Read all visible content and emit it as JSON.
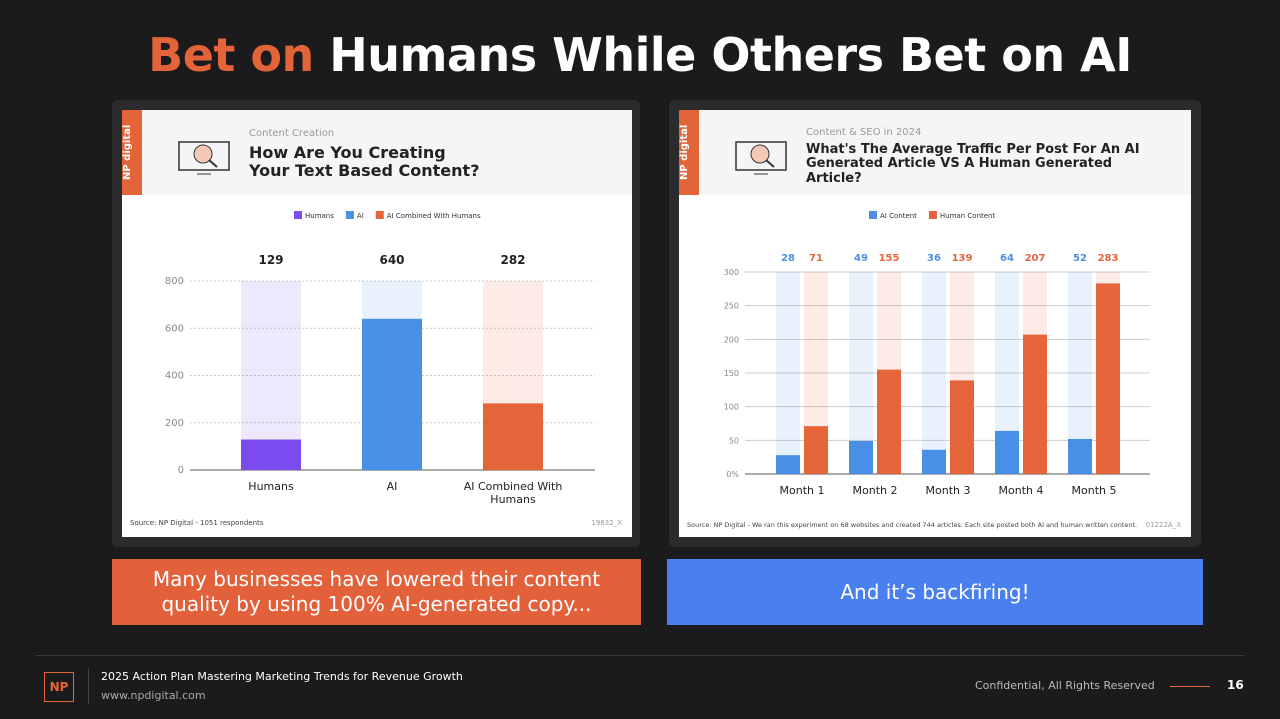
{
  "header": {
    "title_accent": "Bet on",
    "title_rest": "Humans While Others Bet on AI"
  },
  "chart_data": [
    {
      "type": "bar",
      "brand": "NP digital",
      "subtitle": "Content Creation",
      "title": "How Are You Creating Your Text Based Content?",
      "categories": [
        "Humans",
        "AI",
        "AI Combined With Humans"
      ],
      "values": [
        129,
        640,
        282
      ],
      "colors": [
        "#7a4cf0",
        "#4a8fe6",
        "#e5643a"
      ],
      "ylim": [
        0,
        800
      ],
      "yticks": [
        0,
        200,
        400,
        600,
        800
      ],
      "grid": true,
      "source": "Source: NP Digital - 1051 respondents",
      "code": "19632_X"
    },
    {
      "type": "bar",
      "brand": "NP digital",
      "subtitle": "Content & SEO in 2024",
      "title": "What's The Average Traffic Per Post For An AI Generated Article VS A Human Generated Article?",
      "categories": [
        "Month 1",
        "Month 2",
        "Month 3",
        "Month 4",
        "Month 5"
      ],
      "series": [
        {
          "name": "AI Content",
          "color": "#4a8fe6",
          "values": [
            28,
            49,
            36,
            64,
            52
          ]
        },
        {
          "name": "Human Content",
          "color": "#e5643a",
          "values": [
            71,
            155,
            139,
            207,
            283
          ]
        }
      ],
      "ylim": [
        0,
        300
      ],
      "yticks": [
        {
          "value": 0,
          "label": "0%"
        },
        50,
        100,
        150,
        200,
        250,
        300
      ],
      "grid": true,
      "source": "Source: NP Digital - We ran this experiment on 68 websites and created 744 articles. Each site posted both AI and human written content.",
      "code": "01222A_X"
    }
  ],
  "captions": [
    "Many businesses have lowered their content quality by using 100% AI-generated copy...",
    "And it’s backfiring!"
  ],
  "footer": {
    "logo": "NP",
    "title": "2025 Action Plan Mastering Marketing Trends for Revenue Growth",
    "url": "www.npdigital.com",
    "confidential": "Confidential, All Rights Reserved",
    "page": 16
  }
}
